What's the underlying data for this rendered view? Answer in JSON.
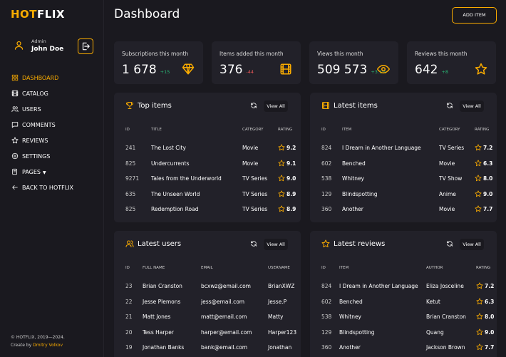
{
  "sidebar": {
    "logo": {
      "accent": "HOT",
      "rest": "FLIX"
    },
    "user": {
      "role": "Admin",
      "name": "John Doe"
    },
    "nav": [
      "DASHBOARD",
      "CATALOG",
      "USERS",
      "COMMENTS",
      "REVIEWS",
      "SETTINGS",
      "PAGES",
      "BACK TO HOTFLIX"
    ],
    "footer": {
      "copyright": "© HOTFLIX, 2019—2024.",
      "credit": "Create by",
      "author": "Dmitry Volkov"
    }
  },
  "header": {
    "title": "Dashboard",
    "button": "ADD ITEM"
  },
  "stats": [
    {
      "label": "Subscriptions this month",
      "value": "1 678",
      "delta": "+15"
    },
    {
      "label": "Items added this month",
      "value": "376",
      "delta": "-44"
    },
    {
      "label": "Views this month",
      "value": "509 573",
      "delta": "+3.1%"
    },
    {
      "label": "Reviews this month",
      "value": "642",
      "delta": "+8"
    }
  ],
  "panels": [
    {
      "title": "Top items",
      "action": "View All",
      "columns": [
        "ID",
        "TITLE",
        "CATEGORY",
        "RATING"
      ],
      "rows": [
        [
          "241",
          "The Lost City",
          "Movie",
          "9.2"
        ],
        [
          "825",
          "Undercurrents",
          "Movie",
          "9.1"
        ],
        [
          "9271",
          "Tales from the Underworld",
          "TV Series",
          "9.0"
        ],
        [
          "635",
          "The Unseen World",
          "TV Series",
          "8.9"
        ],
        [
          "825",
          "Redemption Road",
          "TV Series",
          "8.9"
        ]
      ]
    },
    {
      "title": "Latest items",
      "action": "View All",
      "columns": [
        "ID",
        "ITEM",
        "CATEGORY",
        "RATING"
      ],
      "rows": [
        [
          "824",
          "I Dream in Another Language",
          "TV Series",
          "7.2"
        ],
        [
          "602",
          "Benched",
          "Movie",
          "6.3"
        ],
        [
          "538",
          "Whitney",
          "TV Show",
          "8.0"
        ],
        [
          "129",
          "Blindspotting",
          "Anime",
          "9.0"
        ],
        [
          "360",
          "Another",
          "Movie",
          "7.7"
        ]
      ]
    },
    {
      "title": "Latest users",
      "action": "View All",
      "columns": [
        "ID",
        "FULL NAME",
        "EMAIL",
        "USERNAME"
      ],
      "rows": [
        [
          "23",
          "Brian Cranston",
          "bcxwz@email.com",
          "BrianXWZ"
        ],
        [
          "22",
          "Jesse Plemons",
          "jess@email.com",
          "Jesse.P"
        ],
        [
          "21",
          "Matt Jones",
          "matt@email.com",
          "Matty"
        ],
        [
          "20",
          "Tess Harper",
          "harper@email.com",
          "Harper123"
        ],
        [
          "19",
          "Jonathan Banks",
          "bank@email.com",
          "Jonathan"
        ]
      ]
    },
    {
      "title": "Latest reviews",
      "action": "View All",
      "columns": [
        "ID",
        "ITEM",
        "AUTHOR",
        "RATING"
      ],
      "rows": [
        [
          "824",
          "I Dream in Another Language",
          "Eliza Josceline",
          "7.2"
        ],
        [
          "602",
          "Benched",
          "Ketut",
          "6.3"
        ],
        [
          "538",
          "Whitney",
          "Brian Cranston",
          "8.0"
        ],
        [
          "129",
          "Blindspotting",
          "Quang",
          "9.0"
        ],
        [
          "360",
          "Another",
          "Jackson Brown",
          "7.7"
        ]
      ]
    }
  ]
}
